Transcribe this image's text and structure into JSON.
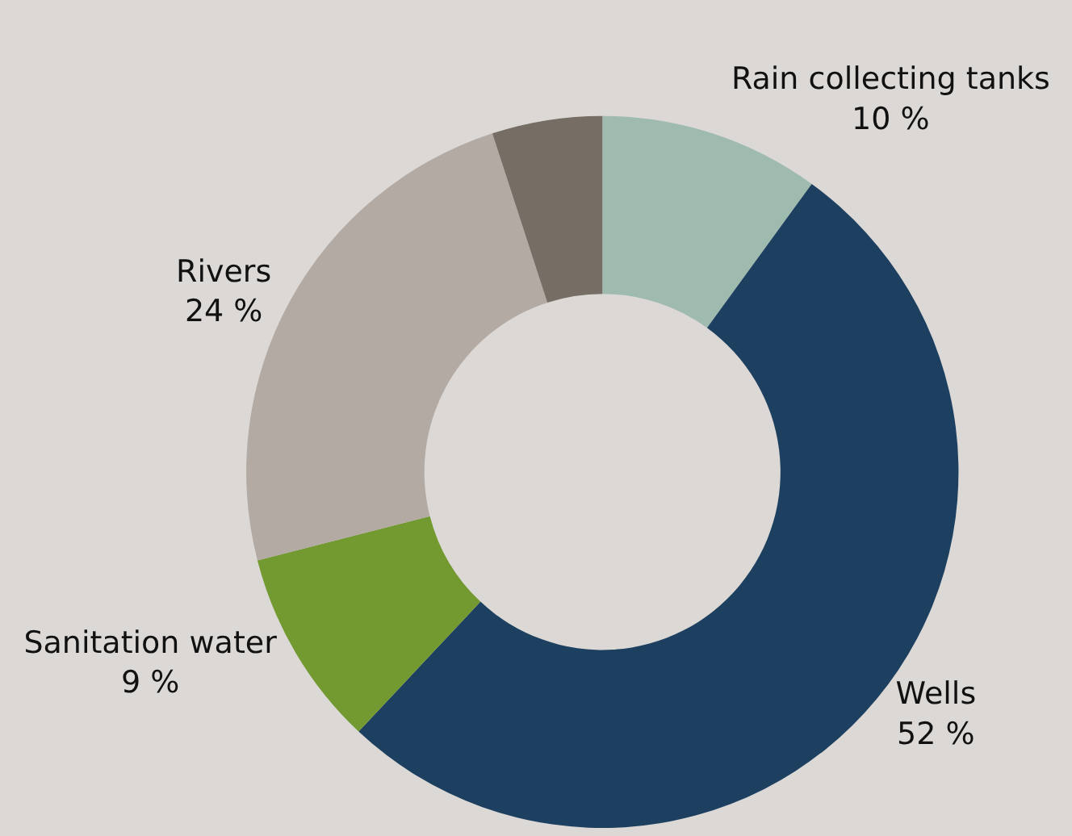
{
  "chart_data": {
    "type": "donut",
    "categories": [
      "Rain collecting tanks",
      "Wells",
      "Sanitation water",
      "Rivers",
      null
    ],
    "values": [
      10,
      52,
      9,
      24,
      5
    ],
    "colors": [
      "#9fbbb0",
      "#1d4060",
      "#739a30",
      "#b2aaa3",
      "#766e64"
    ],
    "value_labels": [
      "10 %",
      "52 %",
      "9 %",
      "24 %",
      null
    ]
  }
}
